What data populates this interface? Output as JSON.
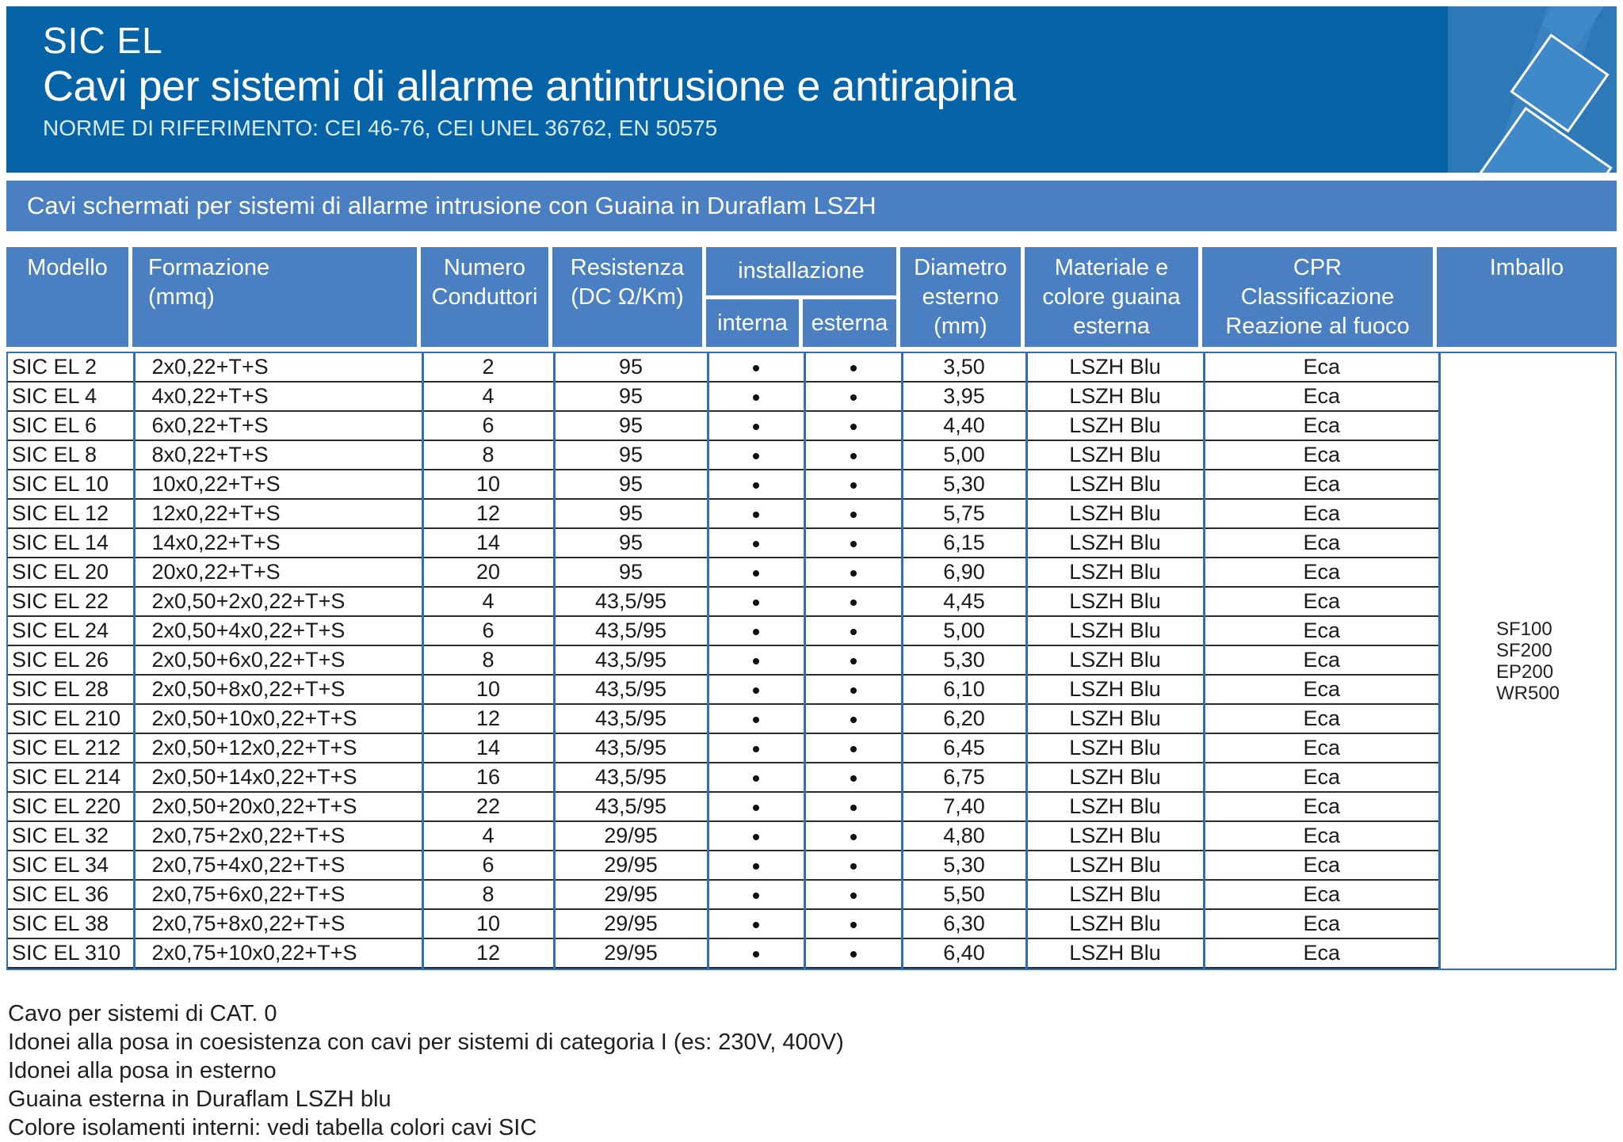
{
  "header": {
    "product_line": "SIC EL",
    "title": "Cavi per sistemi di allarme antintrusione e antirapina",
    "norms": "NORME DI RIFERIMENTO: CEI 46-76, CEI UNEL 36762, EN 50575"
  },
  "band": "Cavi schermati per sistemi di allarme intrusione con Guaina in Duraflam LSZH",
  "colors": {
    "header_blue": "#0663a8",
    "band_blue": "#4a7fc1",
    "grid_blue": "#2e6fb8",
    "row_line": "#2b2b2b",
    "logo_blue": "#2d78b6"
  },
  "table": {
    "headers": {
      "modello": "Modello",
      "formazione": "Formazione\n(mmq)",
      "numero": "Numero\nConduttori",
      "resistenza": "Resistenza\n(DC Ω/Km)",
      "installazione": "installazione",
      "interna": "interna",
      "esterna": "esterna",
      "diametro": "Diametro\nesterno\n(mm)",
      "materiale": "Materiale e\ncolore guaina\nesterna",
      "cpr": "CPR\nClassificazione\nReazione al fuoco",
      "imballo": "Imballo"
    },
    "rows": [
      {
        "modello": "SIC EL 2",
        "formazione": "2x0,22+T+S",
        "conduttori": "2",
        "resistenza": "95",
        "interna": true,
        "esterna": true,
        "diametro": "3,50",
        "guaina": "LSZH Blu",
        "cpr": "Eca"
      },
      {
        "modello": "SIC EL 4",
        "formazione": "4x0,22+T+S",
        "conduttori": "4",
        "resistenza": "95",
        "interna": true,
        "esterna": true,
        "diametro": "3,95",
        "guaina": "LSZH Blu",
        "cpr": "Eca"
      },
      {
        "modello": "SIC EL 6",
        "formazione": "6x0,22+T+S",
        "conduttori": "6",
        "resistenza": "95",
        "interna": true,
        "esterna": true,
        "diametro": "4,40",
        "guaina": "LSZH Blu",
        "cpr": "Eca"
      },
      {
        "modello": "SIC EL 8",
        "formazione": "8x0,22+T+S",
        "conduttori": "8",
        "resistenza": "95",
        "interna": true,
        "esterna": true,
        "diametro": "5,00",
        "guaina": "LSZH Blu",
        "cpr": "Eca"
      },
      {
        "modello": "SIC EL 10",
        "formazione": "10x0,22+T+S",
        "conduttori": "10",
        "resistenza": "95",
        "interna": true,
        "esterna": true,
        "diametro": "5,30",
        "guaina": "LSZH Blu",
        "cpr": "Eca"
      },
      {
        "modello": "SIC EL 12",
        "formazione": "12x0,22+T+S",
        "conduttori": "12",
        "resistenza": "95",
        "interna": true,
        "esterna": true,
        "diametro": "5,75",
        "guaina": "LSZH Blu",
        "cpr": "Eca"
      },
      {
        "modello": "SIC EL 14",
        "formazione": "14x0,22+T+S",
        "conduttori": "14",
        "resistenza": "95",
        "interna": true,
        "esterna": true,
        "diametro": "6,15",
        "guaina": "LSZH Blu",
        "cpr": "Eca"
      },
      {
        "modello": "SIC EL 20",
        "formazione": "20x0,22+T+S",
        "conduttori": "20",
        "resistenza": "95",
        "interna": true,
        "esterna": true,
        "diametro": "6,90",
        "guaina": "LSZH Blu",
        "cpr": "Eca"
      },
      {
        "modello": "SIC EL 22",
        "formazione": "2x0,50+2x0,22+T+S",
        "conduttori": "4",
        "resistenza": "43,5/95",
        "interna": true,
        "esterna": true,
        "diametro": "4,45",
        "guaina": "LSZH Blu",
        "cpr": "Eca"
      },
      {
        "modello": "SIC EL 24",
        "formazione": "2x0,50+4x0,22+T+S",
        "conduttori": "6",
        "resistenza": "43,5/95",
        "interna": true,
        "esterna": true,
        "diametro": "5,00",
        "guaina": "LSZH Blu",
        "cpr": "Eca"
      },
      {
        "modello": "SIC EL 26",
        "formazione": "2x0,50+6x0,22+T+S",
        "conduttori": "8",
        "resistenza": "43,5/95",
        "interna": true,
        "esterna": true,
        "diametro": "5,30",
        "guaina": "LSZH Blu",
        "cpr": "Eca"
      },
      {
        "modello": "SIC EL 28",
        "formazione": "2x0,50+8x0,22+T+S",
        "conduttori": "10",
        "resistenza": "43,5/95",
        "interna": true,
        "esterna": true,
        "diametro": "6,10",
        "guaina": "LSZH Blu",
        "cpr": "Eca"
      },
      {
        "modello": "SIC EL 210",
        "formazione": "2x0,50+10x0,22+T+S",
        "conduttori": "12",
        "resistenza": "43,5/95",
        "interna": true,
        "esterna": true,
        "diametro": "6,20",
        "guaina": "LSZH Blu",
        "cpr": "Eca"
      },
      {
        "modello": "SIC EL 212",
        "formazione": "2x0,50+12x0,22+T+S",
        "conduttori": "14",
        "resistenza": "43,5/95",
        "interna": true,
        "esterna": true,
        "diametro": "6,45",
        "guaina": "LSZH Blu",
        "cpr": "Eca"
      },
      {
        "modello": "SIC EL 214",
        "formazione": "2x0,50+14x0,22+T+S",
        "conduttori": "16",
        "resistenza": "43,5/95",
        "interna": true,
        "esterna": true,
        "diametro": "6,75",
        "guaina": "LSZH Blu",
        "cpr": "Eca"
      },
      {
        "modello": "SIC EL 220",
        "formazione": "2x0,50+20x0,22+T+S",
        "conduttori": "22",
        "resistenza": "43,5/95",
        "interna": true,
        "esterna": true,
        "diametro": "7,40",
        "guaina": "LSZH Blu",
        "cpr": "Eca"
      },
      {
        "modello": "SIC EL 32",
        "formazione": "2x0,75+2x0,22+T+S",
        "conduttori": "4",
        "resistenza": "29/95",
        "interna": true,
        "esterna": true,
        "diametro": "4,80",
        "guaina": "LSZH Blu",
        "cpr": "Eca"
      },
      {
        "modello": "SIC EL 34",
        "formazione": "2x0,75+4x0,22+T+S",
        "conduttori": "6",
        "resistenza": "29/95",
        "interna": true,
        "esterna": true,
        "diametro": "5,30",
        "guaina": "LSZH Blu",
        "cpr": "Eca"
      },
      {
        "modello": "SIC EL 36",
        "formazione": "2x0,75+6x0,22+T+S",
        "conduttori": "8",
        "resistenza": "29/95",
        "interna": true,
        "esterna": true,
        "diametro": "5,50",
        "guaina": "LSZH Blu",
        "cpr": "Eca"
      },
      {
        "modello": "SIC EL 38",
        "formazione": "2x0,75+8x0,22+T+S",
        "conduttori": "10",
        "resistenza": "29/95",
        "interna": true,
        "esterna": true,
        "diametro": "6,30",
        "guaina": "LSZH Blu",
        "cpr": "Eca"
      },
      {
        "modello": "SIC EL 310",
        "formazione": "2x0,75+10x0,22+T+S",
        "conduttori": "12",
        "resistenza": "29/95",
        "interna": true,
        "esterna": true,
        "diametro": "6,40",
        "guaina": "LSZH Blu",
        "cpr": "Eca"
      }
    ],
    "imballo_values": [
      "SF100",
      "SF200",
      "EP200",
      "WR500"
    ]
  },
  "notes": [
    "Cavo per sistemi di CAT. 0",
    "Idonei alla posa in coesistenza con cavi per sistemi di categoria I (es: 230V, 400V)",
    "Idonei alla posa in esterno",
    "Guaina esterna in Duraflam LSZH blu",
    "Colore isolamenti interni: vedi tabella colori cavi SIC"
  ]
}
